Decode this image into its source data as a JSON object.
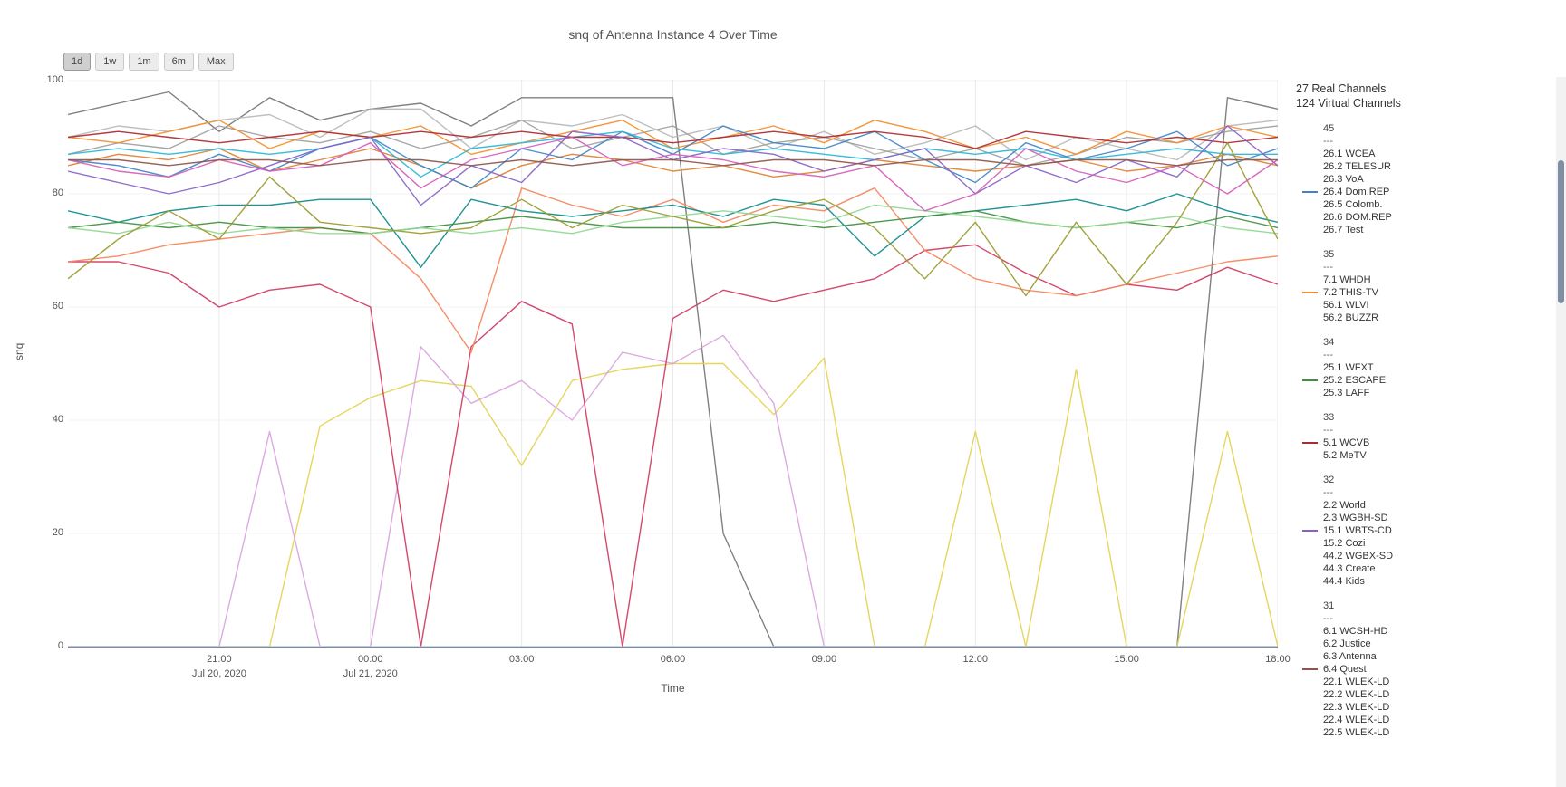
{
  "range_buttons": [
    {
      "label": "1d",
      "active": true
    },
    {
      "label": "1w",
      "active": false
    },
    {
      "label": "1m",
      "active": false
    },
    {
      "label": "6m",
      "active": false
    },
    {
      "label": "Max",
      "active": false
    }
  ],
  "legend": {
    "header_line1": "27 Real Channels",
    "header_line2": "124 Virtual Channels",
    "separator": "---",
    "groups": [
      {
        "rf": "45",
        "items": [
          {
            "label": "26.1 WCEA"
          },
          {
            "label": "26.2 TELESUR"
          },
          {
            "label": "26.3 VoA"
          },
          {
            "label": "26.4 Dom.REP",
            "color": "#3d85c8"
          },
          {
            "label": "26.5 Colomb."
          },
          {
            "label": "26.6 DOM.REP"
          },
          {
            "label": "26.7 Test"
          }
        ]
      },
      {
        "rf": "35",
        "items": [
          {
            "label": "7.1 WHDH"
          },
          {
            "label": "7.2 THIS-TV",
            "color": "#f28e2b"
          },
          {
            "label": "56.1 WLVI"
          },
          {
            "label": "56.2 BUZZR"
          }
        ]
      },
      {
        "rf": "34",
        "items": [
          {
            "label": "25.1 WFXT"
          },
          {
            "label": "25.2 ESCAPE",
            "color": "#3f8f3f"
          },
          {
            "label": "25.3 LAFF"
          }
        ]
      },
      {
        "rf": "33",
        "items": [
          {
            "label": "5.1 WCVB",
            "color": "#ad2a30"
          },
          {
            "label": "5.2 MeTV"
          }
        ]
      },
      {
        "rf": "32",
        "items": [
          {
            "label": "2.2 World"
          },
          {
            "label": "2.3 WGBH-SD"
          },
          {
            "label": "15.1 WBTS-CD",
            "color": "#8761c9"
          },
          {
            "label": "15.2 Cozi"
          },
          {
            "label": "44.2 WGBX-SD"
          },
          {
            "label": "44.3 Create"
          },
          {
            "label": "44.4 Kids"
          }
        ]
      },
      {
        "rf": "31",
        "items": [
          {
            "label": "6.1 WCSH-HD"
          },
          {
            "label": "6.2 Justice"
          },
          {
            "label": "6.3 Antenna"
          },
          {
            "label": "6.4 Quest",
            "color": "#8c564b"
          },
          {
            "label": "22.1 WLEK-LD"
          },
          {
            "label": "22.2 WLEK-LD"
          },
          {
            "label": "22.3 WLEK-LD"
          },
          {
            "label": "22.4 WLEK-LD"
          },
          {
            "label": "22.5 WLEK-LD"
          }
        ]
      }
    ]
  },
  "chart_data": {
    "type": "line",
    "title": "snq of Antenna Instance 4 Over Time",
    "xlabel": "Time",
    "ylabel": "snq",
    "ylim": [
      0,
      100
    ],
    "y_ticks": [
      0,
      20,
      40,
      60,
      80,
      100
    ],
    "x_domain_hours": [
      0,
      24
    ],
    "x_start": "Jul 20, 2020 18:00",
    "x_end": "Jul 21, 2020 18:00",
    "x_ticks": [
      {
        "t": 3,
        "label": "21:00",
        "date": "Jul 20, 2020"
      },
      {
        "t": 6,
        "label": "00:00",
        "date": "Jul 21, 2020"
      },
      {
        "t": 9,
        "label": "03:00"
      },
      {
        "t": 12,
        "label": "06:00"
      },
      {
        "t": 15,
        "label": "09:00"
      },
      {
        "t": 18,
        "label": "12:00"
      },
      {
        "t": 21,
        "label": "15:00"
      },
      {
        "t": 24,
        "label": "18:00"
      }
    ],
    "point_interval_hours": 1,
    "series": [
      {
        "name": "gray-dropout",
        "color": "#757575",
        "values": [
          94,
          96,
          98,
          91,
          97,
          93,
          95,
          96,
          92,
          97,
          97,
          97,
          97,
          20,
          0,
          0,
          0,
          0,
          0,
          0,
          0,
          0,
          0,
          97,
          95
        ]
      },
      {
        "name": "gray-light",
        "color": "#b8b8b8",
        "values": [
          90,
          92,
          91,
          93,
          94,
          90,
          95,
          95,
          88,
          93,
          92,
          94,
          90,
          92,
          88,
          91,
          87,
          89,
          92,
          86,
          90,
          88,
          86,
          92,
          93
        ]
      },
      {
        "name": "gray-mid",
        "color": "#9e9e9e",
        "values": [
          87,
          89,
          88,
          92,
          90,
          89,
          91,
          88,
          90,
          93,
          88,
          90,
          92,
          87,
          89,
          90,
          88,
          86,
          88,
          85,
          87,
          90,
          89,
          91,
          92
        ]
      },
      {
        "name": "yellow",
        "color": "#e3d34f",
        "values": [
          0,
          0,
          0,
          0,
          0,
          39,
          44,
          47,
          46,
          32,
          47,
          49,
          50,
          50,
          41,
          51,
          0,
          0,
          38,
          0,
          49,
          0,
          0,
          38,
          0
        ]
      },
      {
        "name": "plum",
        "color": "#d9a3dd",
        "values": [
          0,
          0,
          0,
          0,
          38,
          0,
          0,
          53,
          43,
          47,
          40,
          52,
          50,
          55,
          43,
          0,
          0,
          0,
          0,
          0,
          0,
          0,
          0,
          0,
          0
        ]
      },
      {
        "name": "crimson",
        "color": "#cf3a5f",
        "values": [
          68,
          68,
          66,
          60,
          63,
          64,
          60,
          0,
          53,
          61,
          57,
          0,
          58,
          63,
          61,
          63,
          65,
          70,
          71,
          66,
          62,
          64,
          63,
          67,
          64
        ]
      },
      {
        "name": "salmon",
        "color": "#f5845c",
        "values": [
          68,
          69,
          71,
          72,
          73,
          74,
          73,
          65,
          52,
          81,
          78,
          76,
          79,
          75,
          78,
          77,
          81,
          70,
          65,
          63,
          62,
          64,
          66,
          68,
          69
        ]
      },
      {
        "name": "orange",
        "color": "#f28e2b",
        "values": [
          90,
          89,
          91,
          93,
          88,
          91,
          90,
          92,
          87,
          89,
          91,
          93,
          88,
          90,
          92,
          89,
          93,
          91,
          88,
          90,
          87,
          91,
          89,
          92,
          90
        ]
      },
      {
        "name": "orange-2",
        "color": "#e0802f",
        "values": [
          85,
          87,
          86,
          88,
          84,
          86,
          88,
          85,
          81,
          85,
          87,
          86,
          84,
          85,
          83,
          84,
          86,
          85,
          84,
          85,
          86,
          84,
          85,
          87,
          85
        ]
      },
      {
        "name": "blue",
        "color": "#3d85c8",
        "values": [
          86,
          85,
          83,
          87,
          84,
          88,
          90,
          85,
          81,
          88,
          86,
          91,
          87,
          92,
          89,
          88,
          91,
          86,
          82,
          89,
          86,
          88,
          91,
          85,
          88
        ]
      },
      {
        "name": "lightblue-zero",
        "color": "#a3c9f0",
        "values": [
          0,
          0,
          0,
          0,
          0,
          0,
          0,
          0,
          0,
          0,
          0,
          0,
          0,
          0,
          0,
          0,
          0,
          0,
          0,
          0,
          0,
          0,
          0,
          0,
          0
        ]
      },
      {
        "name": "cyan",
        "color": "#29b6d8",
        "values": [
          87,
          88,
          87,
          88,
          87,
          88,
          90,
          83,
          88,
          89,
          90,
          91,
          88,
          87,
          88,
          87,
          86,
          88,
          87,
          88,
          86,
          87,
          88,
          87,
          87
        ]
      },
      {
        "name": "teal",
        "color": "#0e8a8a",
        "values": [
          77,
          75,
          77,
          78,
          78,
          79,
          79,
          67,
          79,
          77,
          76,
          77,
          78,
          76,
          79,
          78,
          69,
          76,
          77,
          78,
          79,
          77,
          80,
          77,
          75
        ]
      },
      {
        "name": "dark-red",
        "color": "#ad2a30",
        "values": [
          90,
          91,
          90,
          89,
          90,
          91,
          90,
          91,
          90,
          91,
          90,
          90,
          89,
          90,
          91,
          90,
          91,
          90,
          88,
          91,
          90,
          89,
          90,
          89,
          90
        ]
      },
      {
        "name": "green",
        "color": "#3f8f3f",
        "values": [
          74,
          75,
          74,
          75,
          74,
          74,
          73,
          74,
          75,
          76,
          75,
          74,
          74,
          74,
          75,
          74,
          75,
          76,
          77,
          75,
          74,
          75,
          74,
          76,
          74
        ]
      },
      {
        "name": "light-green",
        "color": "#8fd88f",
        "values": [
          74,
          73,
          75,
          73,
          74,
          73,
          73,
          74,
          73,
          74,
          73,
          75,
          76,
          77,
          76,
          75,
          78,
          77,
          76,
          75,
          74,
          75,
          76,
          74,
          73
        ]
      },
      {
        "name": "olive",
        "color": "#9a9a2e",
        "values": [
          65,
          72,
          77,
          72,
          83,
          75,
          74,
          73,
          74,
          79,
          74,
          78,
          76,
          74,
          77,
          79,
          74,
          65,
          75,
          62,
          75,
          64,
          75,
          89,
          72
        ]
      },
      {
        "name": "purple",
        "color": "#8761c9",
        "values": [
          84,
          82,
          80,
          82,
          85,
          88,
          90,
          78,
          85,
          82,
          91,
          90,
          86,
          88,
          87,
          84,
          86,
          88,
          80,
          85,
          82,
          86,
          83,
          92,
          85
        ]
      },
      {
        "name": "magenta",
        "color": "#d55cb8",
        "values": [
          86,
          84,
          83,
          86,
          84,
          85,
          89,
          81,
          86,
          88,
          90,
          85,
          87,
          86,
          84,
          83,
          85,
          77,
          80,
          88,
          84,
          82,
          85,
          80,
          86
        ]
      },
      {
        "name": "brown",
        "color": "#8c564b",
        "values": [
          86,
          86,
          85,
          86,
          86,
          85,
          86,
          86,
          85,
          86,
          85,
          86,
          86,
          85,
          86,
          86,
          85,
          86,
          86,
          85,
          86,
          86,
          85,
          86,
          86
        ]
      }
    ]
  }
}
